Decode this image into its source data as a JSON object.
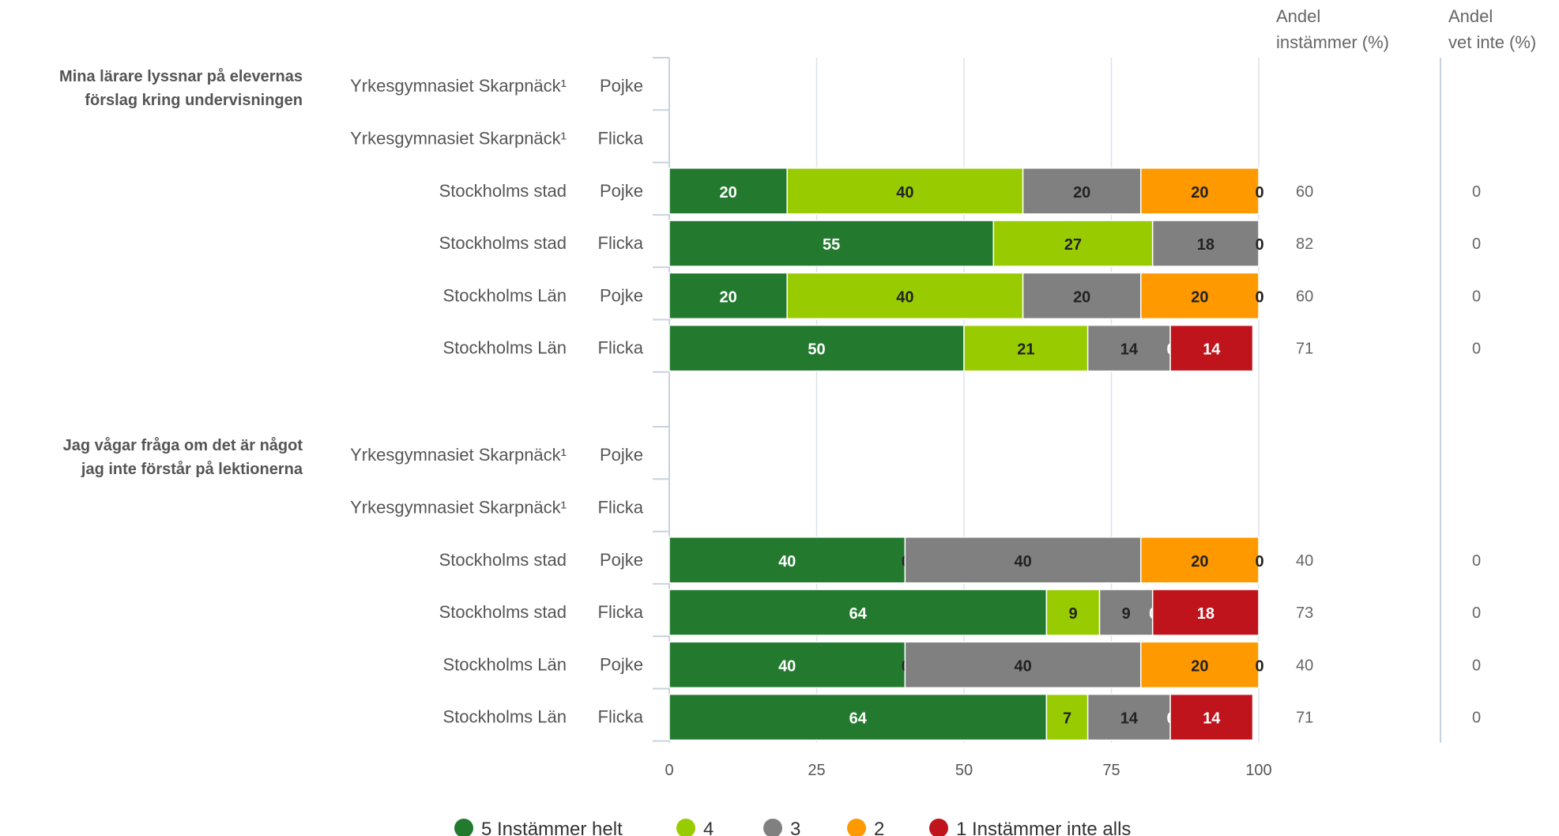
{
  "chart_data": {
    "type": "bar",
    "orientation": "horizontal",
    "stacked": true,
    "xlim": [
      0,
      100
    ],
    "x_ticks": [
      "0",
      "25",
      "50",
      "75",
      "100"
    ],
    "headers": {
      "andel_instammer": [
        "Andel",
        "instämmer (%)"
      ],
      "andel_vet_inte": [
        "Andel",
        "vet inte (%)"
      ]
    },
    "series": [
      {
        "name": "5 Instämmer helt",
        "color": "#237a2f",
        "label_color": "#ffffff"
      },
      {
        "name": "4",
        "color": "#99cc00",
        "label_color": "#222222"
      },
      {
        "name": "3",
        "color": "#808080",
        "label_color": "#222222"
      },
      {
        "name": "2",
        "color": "#ff9900",
        "label_color": "#222222"
      },
      {
        "name": "1 Instämmer inte alls",
        "color": "#c0141c",
        "label_color": "#ffffff"
      }
    ],
    "groups": [
      {
        "question": [
          "Mina lärare lyssnar på elevernas",
          "förslag kring undervisningen"
        ],
        "rows": [
          {
            "unit": "Yrkesgymnasiet Skarpnäck¹",
            "gender": "Pojke",
            "values": null,
            "andel_instammer": "",
            "andel_vet_inte": ""
          },
          {
            "unit": "Yrkesgymnasiet Skarpnäck¹",
            "gender": "Flicka",
            "values": null,
            "andel_instammer": "",
            "andel_vet_inte": ""
          },
          {
            "unit": "Stockholms stad",
            "gender": "Pojke",
            "values": [
              20,
              40,
              20,
              20,
              0
            ],
            "andel_instammer": "60",
            "andel_vet_inte": "0"
          },
          {
            "unit": "Stockholms stad",
            "gender": "Flicka",
            "values": [
              55,
              27,
              18,
              0,
              0
            ],
            "andel_instammer": "82",
            "andel_vet_inte": "0"
          },
          {
            "unit": "Stockholms Län",
            "gender": "Pojke",
            "values": [
              20,
              40,
              20,
              20,
              0
            ],
            "andel_instammer": "60",
            "andel_vet_inte": "0"
          },
          {
            "unit": "Stockholms Län",
            "gender": "Flicka",
            "values": [
              50,
              21,
              14,
              0,
              14
            ],
            "andel_instammer": "71",
            "andel_vet_inte": "0"
          }
        ]
      },
      {
        "question": [
          "Jag vågar fråga om det är något",
          "jag inte förstår på lektionerna"
        ],
        "rows": [
          {
            "unit": "Yrkesgymnasiet Skarpnäck¹",
            "gender": "Pojke",
            "values": null,
            "andel_instammer": "",
            "andel_vet_inte": ""
          },
          {
            "unit": "Yrkesgymnasiet Skarpnäck¹",
            "gender": "Flicka",
            "values": null,
            "andel_instammer": "",
            "andel_vet_inte": ""
          },
          {
            "unit": "Stockholms stad",
            "gender": "Pojke",
            "values": [
              40,
              0,
              40,
              20,
              0
            ],
            "andel_instammer": "40",
            "andel_vet_inte": "0"
          },
          {
            "unit": "Stockholms stad",
            "gender": "Flicka",
            "values": [
              64,
              9,
              9,
              0,
              18
            ],
            "andel_instammer": "73",
            "andel_vet_inte": "0"
          },
          {
            "unit": "Stockholms Län",
            "gender": "Pojke",
            "values": [
              40,
              0,
              40,
              20,
              0
            ],
            "andel_instammer": "40",
            "andel_vet_inte": "0"
          },
          {
            "unit": "Stockholms Län",
            "gender": "Flicka",
            "values": [
              64,
              7,
              14,
              0,
              14
            ],
            "andel_instammer": "71",
            "andel_vet_inte": "0"
          }
        ]
      }
    ]
  }
}
